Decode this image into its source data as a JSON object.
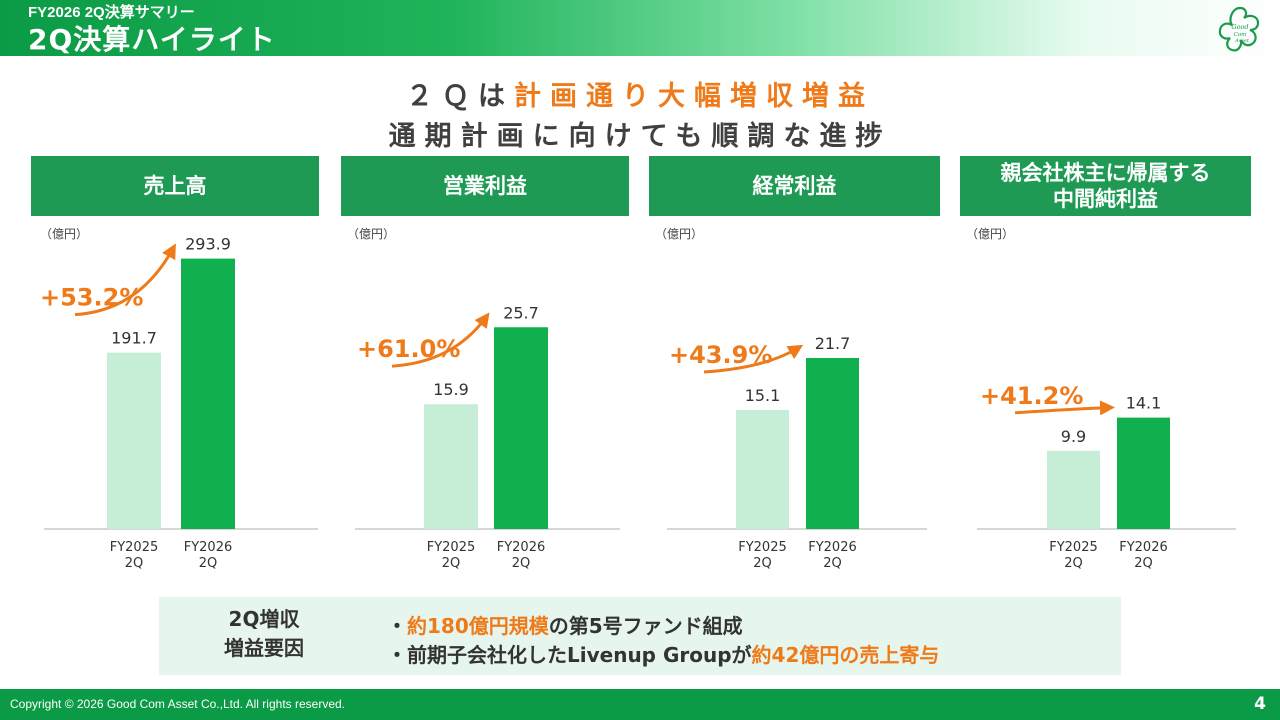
{
  "header": {
    "subtitle": "FY2026 2Q決算サマリー",
    "title": "2Q決算ハイライト",
    "logo_text": "Good Com Asset"
  },
  "headline": {
    "line1_prefix": "２Ｑは",
    "line1_accent": "計画通り大幅増収増益",
    "line2": "通期計画に向けても順調な進捗"
  },
  "colors": {
    "prev_bar": "#c6eed6",
    "curr_bar": "#10b04e",
    "accent": "#ef7a1a",
    "title_bg": "#1f9a54"
  },
  "panels": [
    {
      "title_lines": [
        "売上高"
      ],
      "unit": "（億円）"
    },
    {
      "title_lines": [
        "営業利益"
      ],
      "unit": "（億円）"
    },
    {
      "title_lines": [
        "経常利益"
      ],
      "unit": "（億円）"
    },
    {
      "title_lines": [
        "親会社株主に帰属する",
        "中間純利益"
      ],
      "unit": "（億円）"
    }
  ],
  "chart_data": [
    {
      "type": "bar",
      "categories": [
        "FY2025\n2Q",
        "FY2026\n2Q"
      ],
      "values": [
        191.7,
        293.9
      ],
      "growth": "+53.2%",
      "ylabel": "（億円）"
    },
    {
      "type": "bar",
      "categories": [
        "FY2025\n2Q",
        "FY2026\n2Q"
      ],
      "values": [
        15.9,
        25.7
      ],
      "growth": "+61.0%",
      "ylabel": "（億円）"
    },
    {
      "type": "bar",
      "categories": [
        "FY2025\n2Q",
        "FY2026\n2Q"
      ],
      "values": [
        15.1,
        21.7
      ],
      "growth": "+43.9%",
      "ylabel": "（億円）"
    },
    {
      "type": "bar",
      "categories": [
        "FY2025\n2Q",
        "FY2026\n2Q"
      ],
      "values": [
        9.9,
        14.1
      ],
      "growth": "+41.2%",
      "ylabel": "（億円）"
    }
  ],
  "factors": {
    "label_lines": [
      "2Q増収",
      "増益要因"
    ],
    "items": [
      {
        "bullet": "・",
        "accent": "約180億円規模",
        "text": "の第5号ファンド組成",
        "suffix_accent": ""
      },
      {
        "bullet": "・",
        "accent": "",
        "text": "前期子会社化したLivenup Groupが",
        "suffix_accent": "約42億円の売上寄与"
      }
    ]
  },
  "footer": {
    "copyright": "Copyright © 2026 Good Com Asset Co.,Ltd. All rights reserved.",
    "page": "4"
  }
}
